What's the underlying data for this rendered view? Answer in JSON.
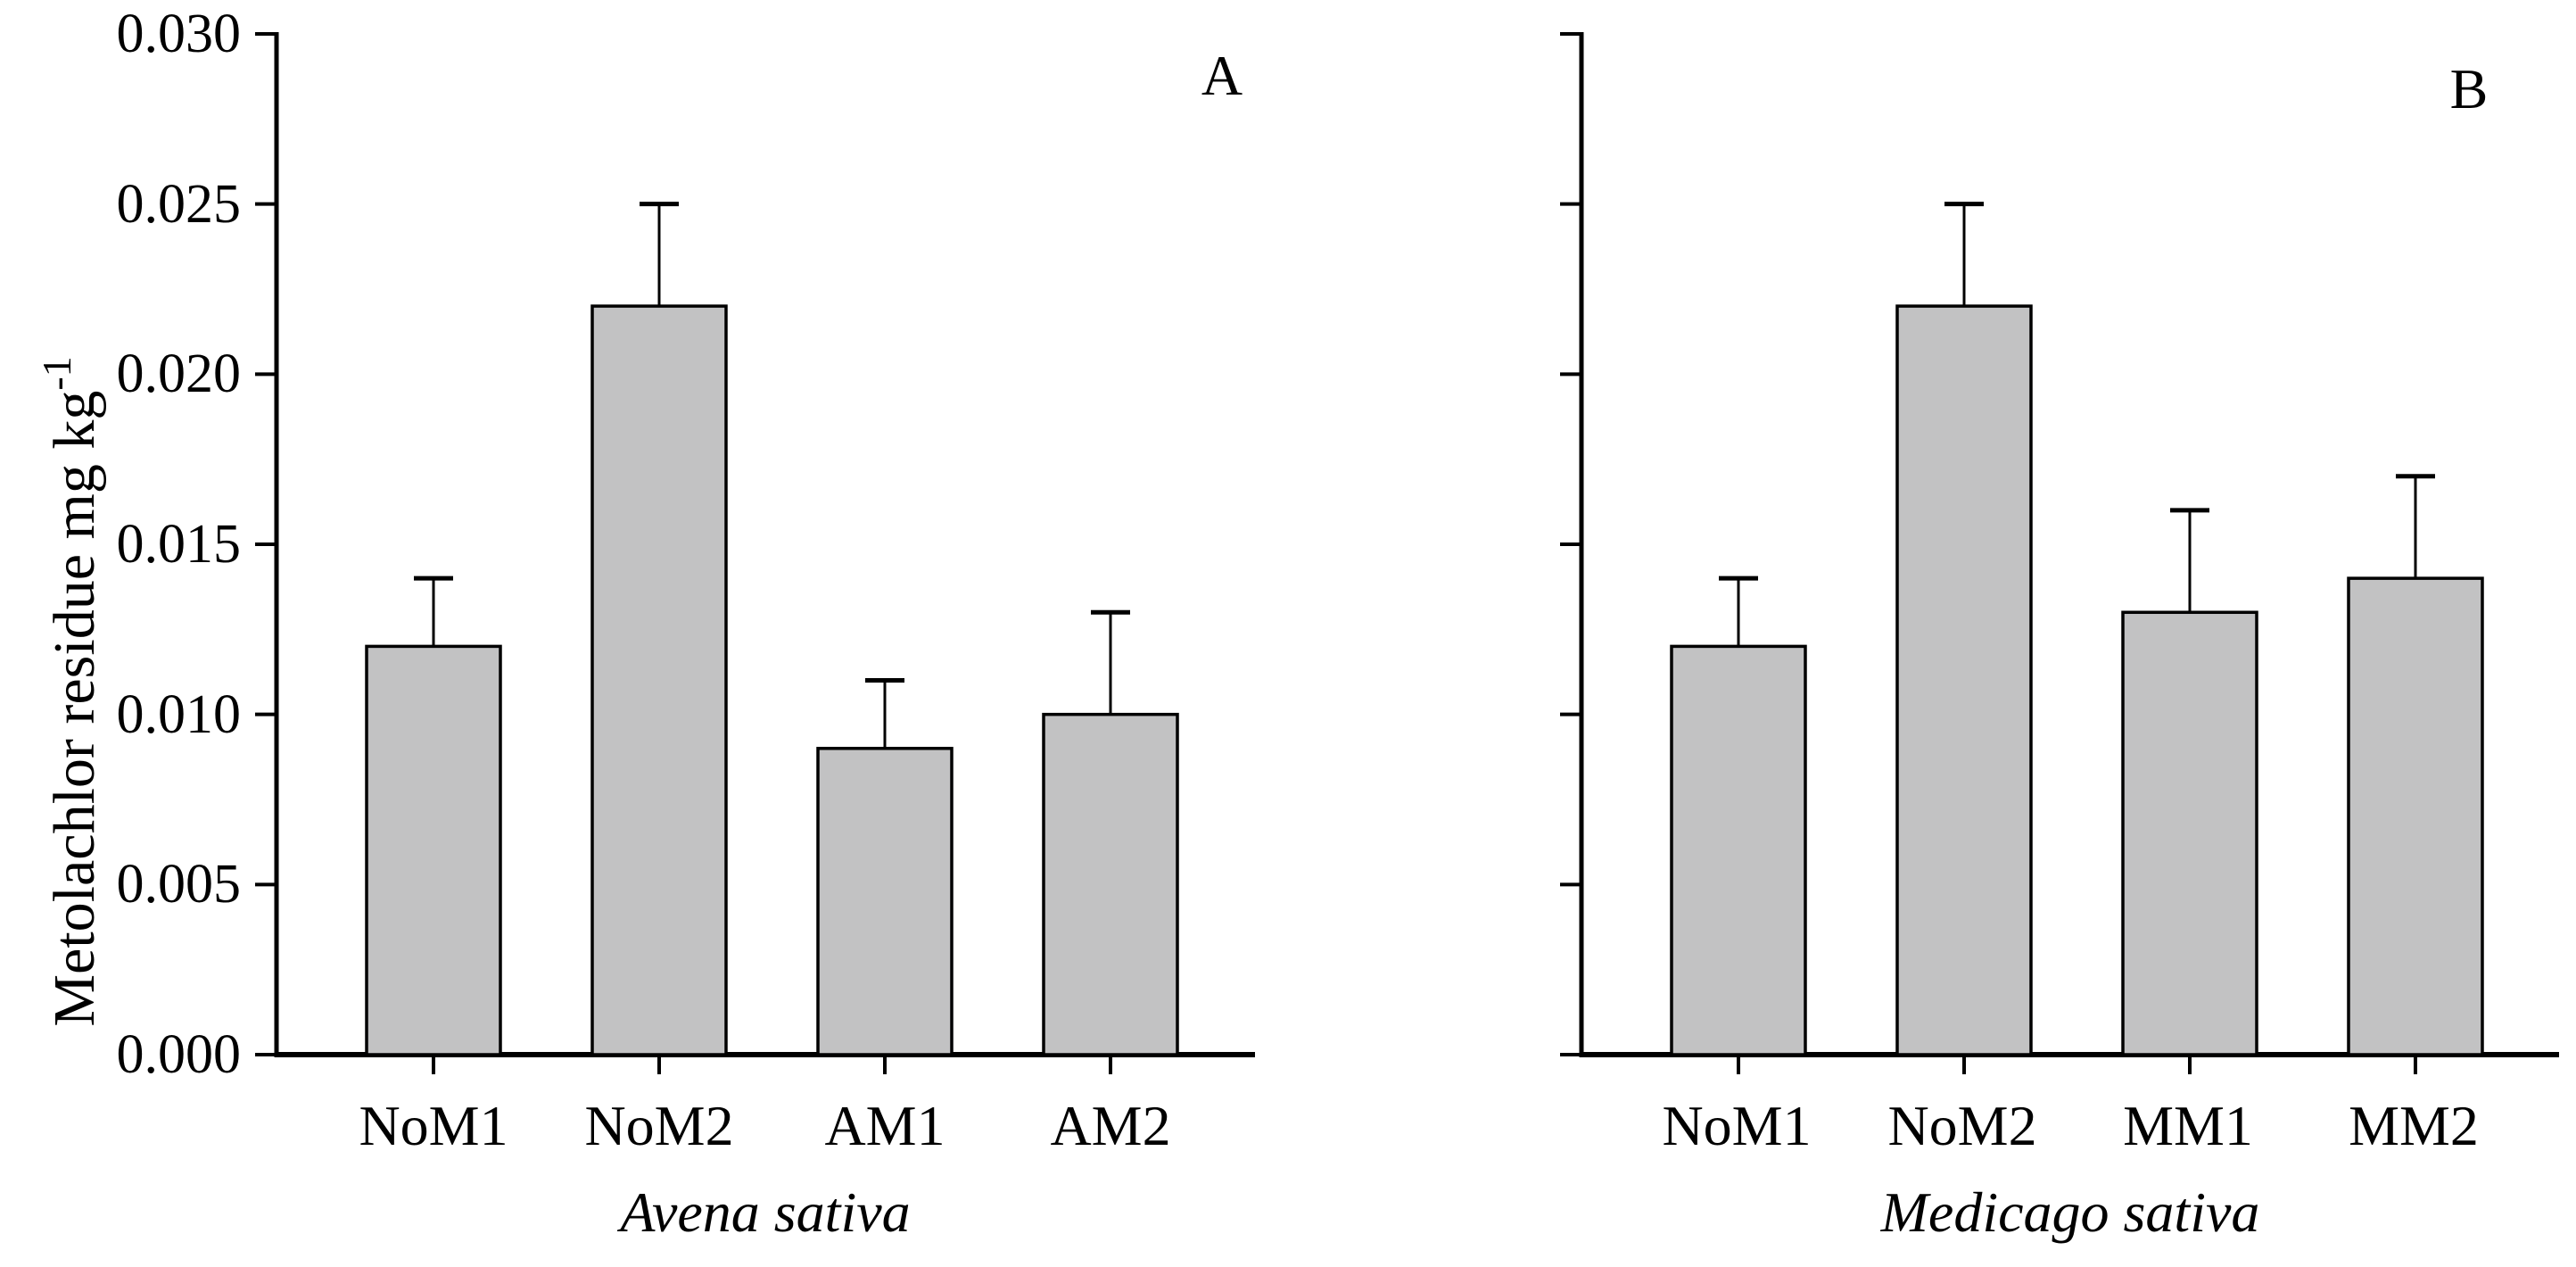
{
  "figure": {
    "background": "#ffffff",
    "line_color": "#000000",
    "bar_fill": "#c2c2c3",
    "y_axis_title": "Metolachlor residue mg kg",
    "y_axis_title_superscript": "-1"
  },
  "chart_data": [
    {
      "type": "bar",
      "panel_label": "A",
      "xlabel": "Avena sativa",
      "ylabel": "Metolachlor residue mg kg-1",
      "categories": [
        "NoM1",
        "NoM2",
        "AM1",
        "AM2"
      ],
      "values": [
        0.012,
        0.022,
        0.009,
        0.01
      ],
      "error_plus": [
        0.002,
        0.003,
        0.002,
        0.003
      ],
      "ylim": [
        0.0,
        0.03
      ],
      "ytick_step": 0.005,
      "ytick_labels": [
        "0.000",
        "0.005",
        "0.010",
        "0.015",
        "0.020",
        "0.025",
        "0.030"
      ],
      "show_ytick_labels": true,
      "grid": false,
      "legend": "none"
    },
    {
      "type": "bar",
      "panel_label": "B",
      "xlabel": "Medicago sativa",
      "ylabel": "",
      "categories": [
        "NoM1",
        "NoM2",
        "MM1",
        "MM2"
      ],
      "values": [
        0.012,
        0.022,
        0.013,
        0.014
      ],
      "error_plus": [
        0.002,
        0.003,
        0.003,
        0.003
      ],
      "ylim": [
        0.0,
        0.03
      ],
      "ytick_step": 0.005,
      "ytick_labels": [],
      "show_ytick_labels": false,
      "grid": false,
      "legend": "none"
    }
  ]
}
